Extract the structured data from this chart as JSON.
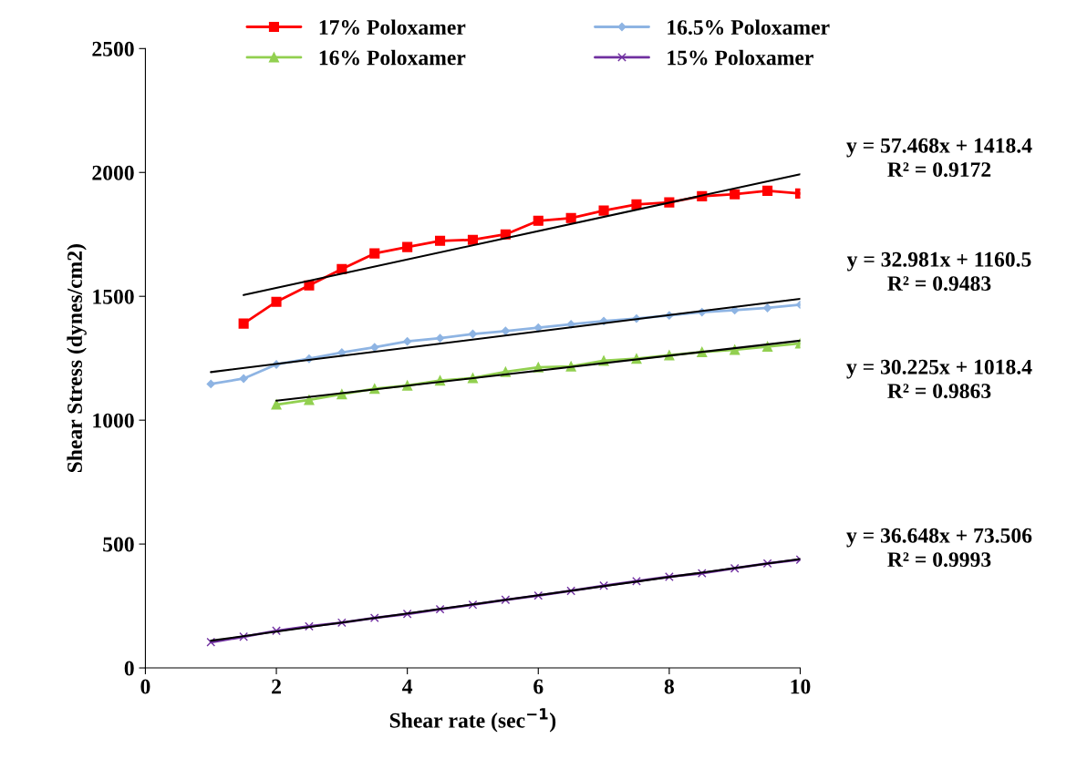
{
  "chart_data": {
    "type": "line",
    "xlabel": "Shear rate (sec$^{−1}$)",
    "ylabel": "Shear Stress (dynes/cm2)",
    "xlim": [
      0,
      10
    ],
    "ylim": [
      0,
      2500
    ],
    "xticks": [
      0,
      2,
      4,
      6,
      8,
      10
    ],
    "yticks": [
      0,
      500,
      1000,
      1500,
      2000,
      2500
    ],
    "grid": false,
    "legend": "top",
    "series": [
      {
        "name": "17% Poloxamer",
        "color": "#ff0000",
        "marker": "square",
        "x": [
          1.5,
          2,
          2.5,
          3,
          3.5,
          4,
          4.5,
          5,
          5.5,
          6,
          6.5,
          7,
          7.5,
          8,
          8.5,
          9,
          9.5,
          10
        ],
        "values": [
          1390,
          1478,
          1544,
          1610,
          1673,
          1699,
          1724,
          1728,
          1750,
          1805,
          1816,
          1846,
          1871,
          1879,
          1904,
          1912,
          1926,
          1915
        ]
      },
      {
        "name": "16.5% Poloxamer",
        "color": "#8eb4e3",
        "marker": "diamond",
        "x": [
          1,
          1.5,
          2,
          2.5,
          3,
          3.5,
          4,
          4.5,
          5,
          5.5,
          6,
          6.5,
          7,
          7.5,
          8,
          8.5,
          9,
          9.5,
          10
        ],
        "values": [
          1146,
          1168,
          1225,
          1248,
          1273,
          1294,
          1318,
          1331,
          1348,
          1360,
          1373,
          1387,
          1400,
          1410,
          1423,
          1436,
          1444,
          1453,
          1466
        ]
      },
      {
        "name": "16% Poloxamer",
        "color": "#92d050",
        "marker": "triangle",
        "x": [
          2,
          2.5,
          3,
          3.5,
          4,
          4.5,
          5,
          5.5,
          6,
          6.5,
          7,
          7.5,
          8,
          8.5,
          9,
          9.5,
          10
        ],
        "values": [
          1063,
          1082,
          1105,
          1127,
          1140,
          1160,
          1170,
          1195,
          1213,
          1217,
          1240,
          1248,
          1262,
          1275,
          1284,
          1297,
          1310
        ]
      },
      {
        "name": "15% Poloxamer",
        "color": "#7030a0",
        "marker": "cross",
        "x": [
          1,
          1.5,
          2,
          2.5,
          3,
          3.5,
          4,
          4.5,
          5,
          5.5,
          6,
          6.5,
          7,
          7.5,
          8,
          8.5,
          9,
          9.5,
          10
        ],
        "values": [
          104,
          126,
          150,
          168,
          183,
          202,
          218,
          237,
          255,
          275,
          292,
          311,
          332,
          350,
          368,
          382,
          402,
          422,
          437
        ]
      },
      {
        "color": "#000000",
        "marker": "none",
        "x": [
          1.5,
          10
        ],
        "values": [
          1505,
          1993
        ]
      },
      {
        "color": "#000000",
        "marker": "none",
        "x": [
          1,
          10
        ],
        "values": [
          1194,
          1490
        ]
      },
      {
        "color": "#000000",
        "marker": "none",
        "x": [
          2,
          10
        ],
        "values": [
          1079,
          1321
        ]
      },
      {
        "color": "#000000",
        "marker": "none",
        "x": [
          1,
          10
        ],
        "values": [
          110,
          440
        ]
      }
    ],
    "annotations": [
      "y = 57.468x + 1418.4\nR² = 0.9172",
      "y = 32.981x + 1160.5\nR² = 0.9483",
      "y = 30.225x + 1018.4\nR² = 0.9863",
      "y = 36.648x + 73.506\nR² = 0.9993"
    ]
  }
}
